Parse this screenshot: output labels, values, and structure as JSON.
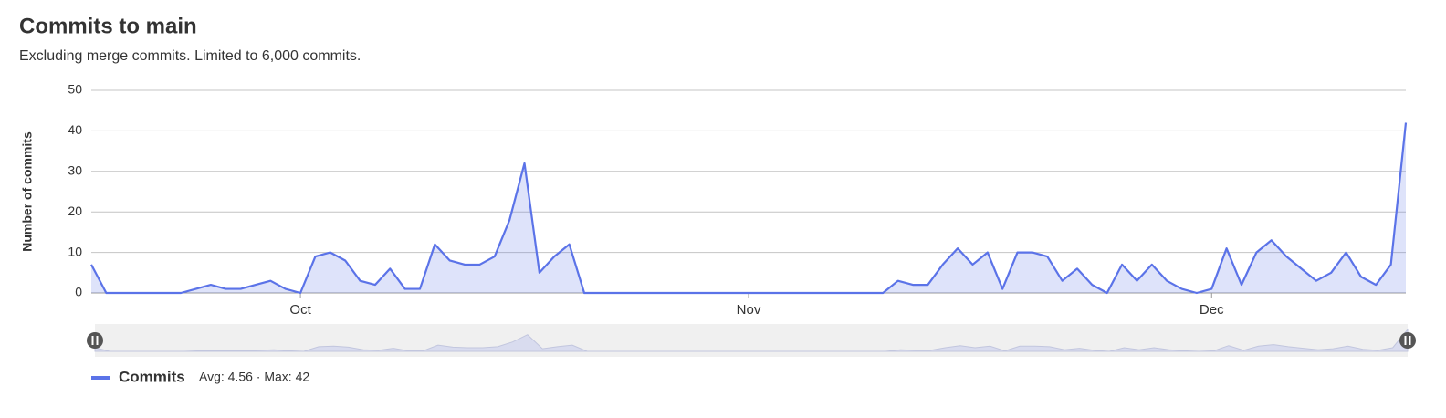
{
  "chart_data": {
    "type": "line",
    "title": "Commits to main",
    "subtitle": "Excluding merge commits. Limited to 6,000 commits.",
    "y_label": "Number of commits",
    "categories": [
      null,
      null,
      null,
      null,
      null,
      null,
      null,
      null,
      null,
      null,
      null,
      null,
      null,
      null,
      "Oct",
      null,
      null,
      null,
      null,
      null,
      null,
      null,
      null,
      null,
      null,
      null,
      null,
      null,
      null,
      null,
      null,
      null,
      null,
      null,
      null,
      null,
      null,
      null,
      null,
      null,
      null,
      null,
      null,
      null,
      "Nov",
      null,
      null,
      null,
      null,
      null,
      null,
      null,
      null,
      null,
      null,
      null,
      null,
      null,
      null,
      null,
      null,
      null,
      null,
      null,
      null,
      null,
      null,
      null,
      null,
      null,
      null,
      null,
      null,
      null,
      null,
      "Dec",
      null,
      null,
      null,
      null,
      null,
      null,
      null,
      null,
      null,
      null,
      null,
      null,
      null
    ],
    "series": [
      {
        "name": "Commits",
        "color": "#5b73e8",
        "values": [
          7,
          0,
          0,
          0,
          0,
          0,
          0,
          1,
          2,
          1,
          1,
          2,
          3,
          1,
          0,
          9,
          10,
          8,
          3,
          2,
          6,
          1,
          1,
          12,
          8,
          7,
          7,
          9,
          18,
          32,
          5,
          9,
          12,
          0,
          0,
          0,
          0,
          0,
          0,
          0,
          0,
          0,
          0,
          0,
          0,
          0,
          0,
          0,
          0,
          0,
          0,
          0,
          0,
          0,
          3,
          2,
          2,
          7,
          11,
          7,
          10,
          1,
          10,
          10,
          9,
          3,
          6,
          2,
          0,
          7,
          3,
          7,
          3,
          1,
          0,
          1,
          11,
          2,
          10,
          13,
          9,
          6,
          3,
          5,
          10,
          4,
          2,
          7,
          42
        ]
      }
    ],
    "legend_stats": "Avg: 4.56 · Max: 42",
    "ylim": [
      0,
      50
    ],
    "yticks": [
      0,
      10,
      20,
      30,
      40,
      50
    ],
    "grid": true
  }
}
